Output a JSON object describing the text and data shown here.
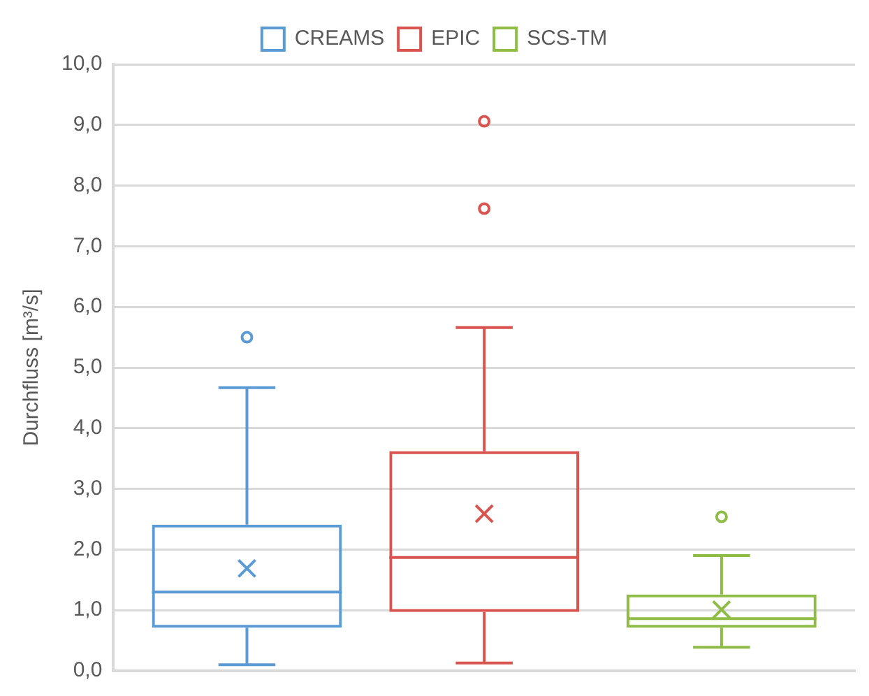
{
  "chart_data": {
    "type": "box",
    "ylabel": "Durchfluss [m³/s]",
    "categories": [
      null
    ],
    "ylim": [
      0,
      10
    ],
    "yticks": [
      {
        "value": 0,
        "label": "0,0"
      },
      {
        "value": 1,
        "label": "1,0"
      },
      {
        "value": 2,
        "label": "2,0"
      },
      {
        "value": 3,
        "label": "3,0"
      },
      {
        "value": 4,
        "label": "4,0"
      },
      {
        "value": 5,
        "label": "5,0"
      },
      {
        "value": 6,
        "label": "6,0"
      },
      {
        "value": 7,
        "label": "7,0"
      },
      {
        "value": 8,
        "label": "8,0"
      },
      {
        "value": 9,
        "label": "9,0"
      },
      {
        "value": 10,
        "label": "10,0"
      }
    ],
    "grid": "y",
    "legend": "top",
    "tick_labels": "y",
    "series": [
      {
        "name": "CREAMS",
        "color": "#5b9bd5",
        "boxes": [
          {
            "low": 0.1,
            "q1": 0.71,
            "median": 1.3,
            "q3": 2.41,
            "high": 4.67,
            "mean": 1.69,
            "outliers": [
              5.5
            ]
          }
        ]
      },
      {
        "name": "EPIC",
        "color": "#d9534f",
        "boxes": [
          {
            "low": 0.13,
            "q1": 0.97,
            "median": 1.87,
            "q3": 3.62,
            "high": 5.66,
            "mean": 2.59,
            "outliers": [
              7.62,
              9.06
            ]
          }
        ]
      },
      {
        "name": "SCS-TM",
        "color": "#8fbc45",
        "boxes": [
          {
            "low": 0.39,
            "q1": 0.71,
            "median": 0.86,
            "q3": 1.26,
            "high": 1.9,
            "mean": 1.01,
            "outliers": [
              2.54
            ]
          }
        ]
      }
    ]
  }
}
